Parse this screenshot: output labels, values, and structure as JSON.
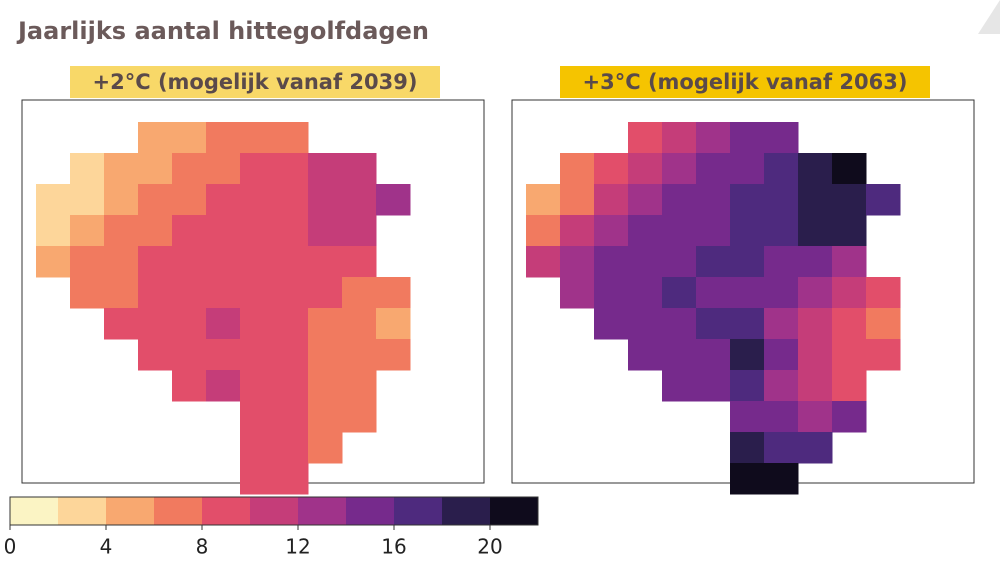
{
  "title": "Jaarlijks aantal hittegolfdagen",
  "colorbar": {
    "clim": [
      0,
      22
    ],
    "ticks": [
      0,
      4,
      8,
      12,
      16,
      20
    ],
    "colors": [
      "#fbf4c4",
      "#fdd69a",
      "#f8a870",
      "#f17a5f",
      "#e24e6a",
      "#c53d79",
      "#a0338a",
      "#762a8c",
      "#4e2a7e",
      "#2a1e4c",
      "#0f0b1c"
    ]
  },
  "maps": [
    {
      "label": "+2°C (mogelijk vanaf 2039)",
      "label_color": "#f8d868",
      "grid": [
        [
          null,
          null,
          null,
          4,
          5,
          6,
          7,
          7,
          null,
          null,
          null,
          null
        ],
        [
          null,
          3,
          4,
          5,
          6,
          7,
          8,
          9,
          10,
          11,
          null,
          null
        ],
        [
          2,
          3,
          5,
          6,
          7,
          8,
          9,
          9,
          10,
          11,
          12,
          null
        ],
        [
          3,
          5,
          6,
          7,
          8,
          9,
          9,
          9,
          10,
          11,
          null,
          null
        ],
        [
          5,
          6,
          7,
          8,
          8,
          9,
          9,
          9,
          9,
          8,
          null,
          null
        ],
        [
          null,
          7,
          7,
          8,
          9,
          9,
          9,
          9,
          8,
          7,
          6,
          null
        ],
        [
          null,
          null,
          8,
          9,
          9,
          10,
          9,
          8,
          7,
          6,
          4,
          null
        ],
        [
          null,
          null,
          null,
          9,
          9,
          9,
          9,
          8,
          7,
          6,
          6,
          null
        ],
        [
          null,
          null,
          null,
          null,
          9,
          10,
          9,
          8,
          7,
          6,
          null,
          null
        ],
        [
          null,
          null,
          null,
          null,
          null,
          null,
          9,
          8,
          6,
          7,
          null,
          null
        ],
        [
          null,
          null,
          null,
          null,
          null,
          null,
          8,
          8,
          7,
          null,
          null,
          null
        ],
        [
          null,
          null,
          null,
          null,
          null,
          null,
          9,
          9,
          null,
          null,
          null,
          null
        ]
      ]
    },
    {
      "label": "+3°C (mogelijk vanaf 2063)",
      "label_color": "#f5c400",
      "grid": [
        [
          null,
          null,
          null,
          8,
          10,
          12,
          14,
          15,
          null,
          null,
          null,
          null
        ],
        [
          null,
          6,
          8,
          10,
          12,
          14,
          15,
          16,
          19,
          20,
          null,
          null
        ],
        [
          4,
          6,
          10,
          12,
          14,
          15,
          16,
          16,
          18,
          19,
          17,
          null
        ],
        [
          6,
          10,
          12,
          14,
          15,
          15,
          16,
          16,
          18,
          18,
          null,
          null
        ],
        [
          10,
          12,
          14,
          15,
          15,
          16,
          16,
          15,
          14,
          13,
          null,
          null
        ],
        [
          null,
          13,
          14,
          15,
          16,
          15,
          15,
          14,
          12,
          10,
          8,
          null
        ],
        [
          null,
          null,
          14,
          15,
          15,
          17,
          16,
          13,
          11,
          9,
          7,
          null
        ],
        [
          null,
          null,
          null,
          14,
          15,
          15,
          18,
          14,
          11,
          9,
          8,
          null
        ],
        [
          null,
          null,
          null,
          null,
          14,
          15,
          16,
          13,
          10,
          9,
          null,
          null
        ],
        [
          null,
          null,
          null,
          null,
          null,
          null,
          15,
          14,
          12,
          15,
          null,
          null
        ],
        [
          null,
          null,
          null,
          null,
          null,
          null,
          18,
          17,
          16,
          null,
          null,
          null
        ],
        [
          null,
          null,
          null,
          null,
          null,
          null,
          20,
          21,
          null,
          null,
          null,
          null
        ]
      ]
    }
  ]
}
